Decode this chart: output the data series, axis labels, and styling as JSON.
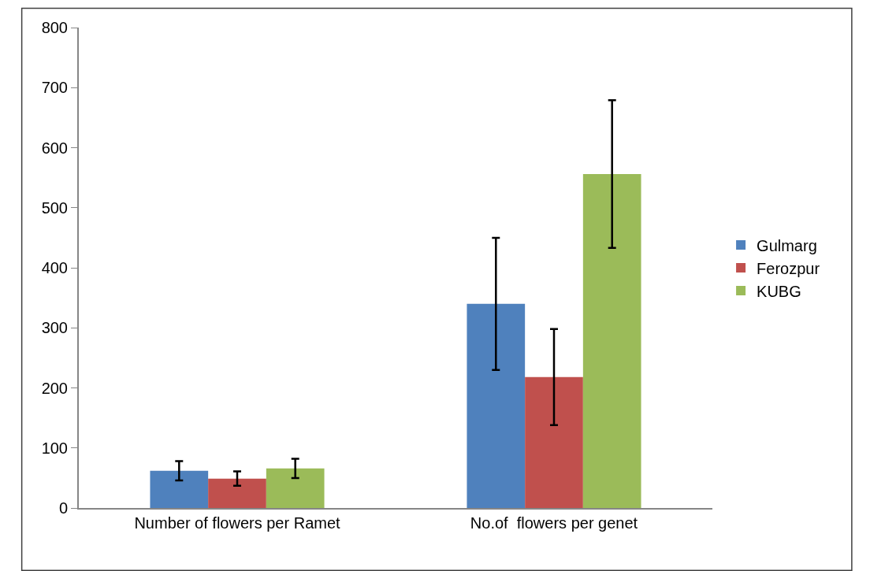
{
  "chart_data": {
    "type": "bar",
    "categories": [
      "Number of flowers per Ramet",
      "No.of  flowers per genet"
    ],
    "series": [
      {
        "name": "Gulmarg",
        "color": "#4f81bd",
        "values": [
          62,
          340
        ],
        "errors": [
          16,
          110
        ]
      },
      {
        "name": "Ferozpur",
        "color": "#c0504d",
        "values": [
          49,
          218
        ],
        "errors": [
          12,
          80
        ]
      },
      {
        "name": "KUBG",
        "color": "#9bbb59",
        "values": [
          66,
          556
        ],
        "errors": [
          16,
          123
        ]
      }
    ],
    "ylim": [
      0,
      800
    ],
    "yticks": [
      0,
      100,
      200,
      300,
      400,
      500,
      600,
      700,
      800
    ],
    "legend": "right"
  }
}
